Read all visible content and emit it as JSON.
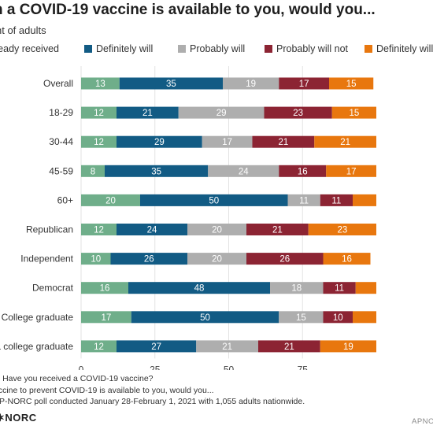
{
  "title": "n a COVID-19 vaccine is available to you, would you...",
  "subtitle": "nt of adults",
  "legend": [
    {
      "label": "ready received",
      "color": "#6fae8a"
    },
    {
      "label": "Definitely will",
      "color": "#125b84"
    },
    {
      "label": "Probably will",
      "color": "#aeaeae"
    },
    {
      "label": "Probably will not",
      "color": "#8c2433"
    },
    {
      "label": "Definitely will",
      "color": "#e8770e"
    }
  ],
  "chart_data": {
    "type": "bar",
    "orientation": "horizontal",
    "stacked": true,
    "categories": [
      "Overall",
      "18-29",
      "30-44",
      "45-59",
      "60+",
      "Republican",
      "Independent",
      "Democrat",
      "College graduate",
      "a college graduate"
    ],
    "series": [
      {
        "name": "ready received",
        "color": "#6fae8a",
        "values": [
          13,
          12,
          12,
          8,
          20,
          12,
          10,
          16,
          17,
          12
        ]
      },
      {
        "name": "Definitely will",
        "color": "#125b84",
        "values": [
          35,
          21,
          29,
          35,
          50,
          24,
          26,
          48,
          50,
          27
        ]
      },
      {
        "name": "Probably will",
        "color": "#aeaeae",
        "values": [
          19,
          29,
          17,
          24,
          11,
          20,
          20,
          18,
          15,
          21
        ]
      },
      {
        "name": "Probably will not",
        "color": "#8c2433",
        "values": [
          17,
          23,
          21,
          16,
          11,
          21,
          26,
          11,
          10,
          21
        ]
      },
      {
        "name": "Definitely will",
        "color": "#e8770e",
        "values": [
          15,
          15,
          21,
          17,
          8,
          23,
          16,
          7,
          8,
          19
        ]
      }
    ],
    "value_labels": [
      [
        "13",
        "35",
        "19",
        "17",
        "15"
      ],
      [
        "12",
        "21",
        "29",
        "23",
        "15"
      ],
      [
        "12",
        "29",
        "17",
        "21",
        "21"
      ],
      [
        "8",
        "35",
        "24",
        "16",
        "17"
      ],
      [
        "20",
        "50",
        "11",
        "11",
        ""
      ],
      [
        "12",
        "24",
        "20",
        "21",
        "23"
      ],
      [
        "10",
        "26",
        "20",
        "26",
        "16"
      ],
      [
        "16",
        "48",
        "18",
        "11",
        ""
      ],
      [
        "17",
        "50",
        "15",
        "10",
        ""
      ],
      [
        "12",
        "27",
        "21",
        "21",
        "19"
      ]
    ],
    "x_ticks": [
      "0",
      "25",
      "50",
      "75"
    ],
    "xlim": [
      0,
      100
    ],
    "grid": true
  },
  "notes": [
    "s:  Have you received a COVID-19 vaccine?",
    "accine to prevent COVID-19 is available to you, would you...",
    "AP-NORC poll conducted January 28-February 1, 2021 with 1,055 adults nationwide."
  ],
  "logo": "✶NORC",
  "credit": "APNO"
}
